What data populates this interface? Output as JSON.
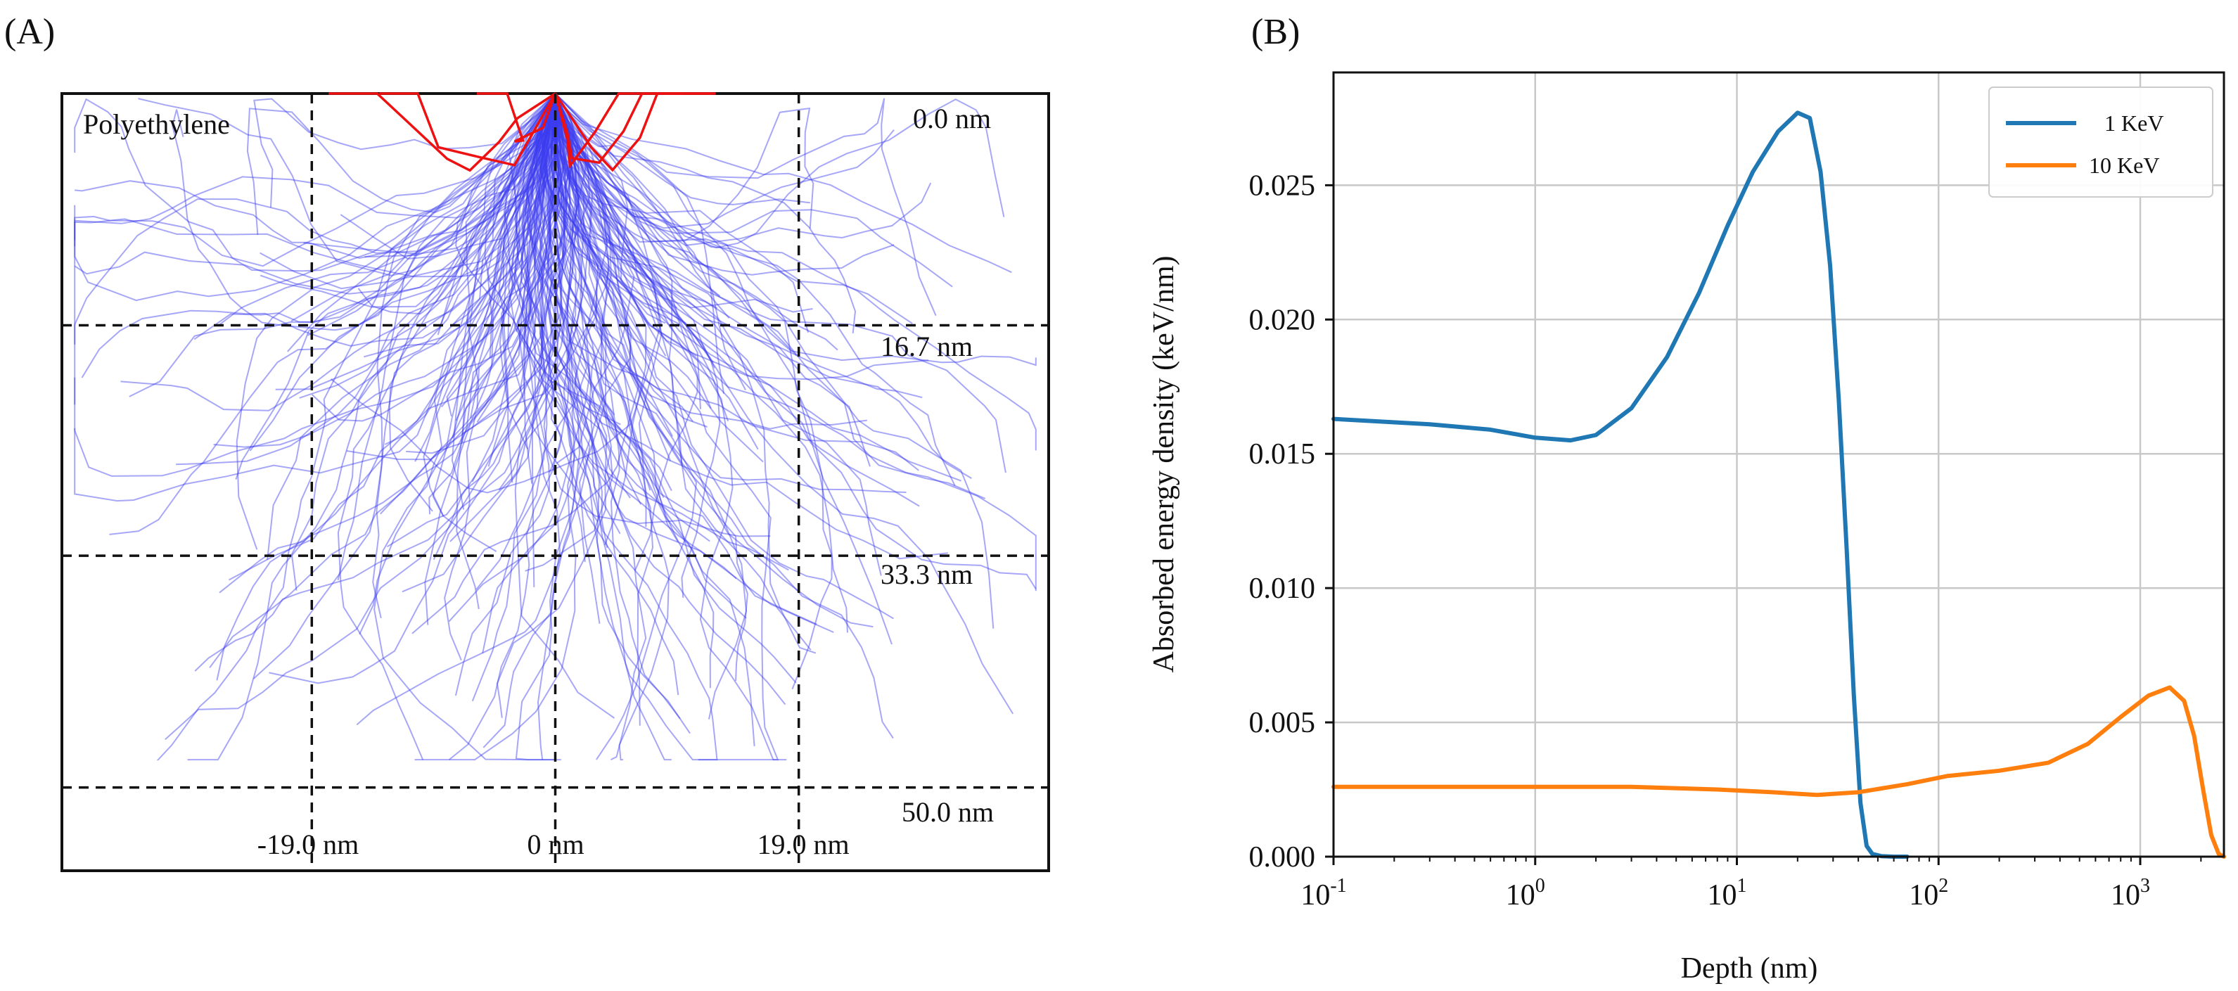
{
  "panels": {
    "a_label": "(A)",
    "b_label": "(B)"
  },
  "colors": {
    "electron_tracks": "#3b3bf0",
    "backscatter_tracks": "#ee1111",
    "series_1kev": "#1f77b4",
    "series_10kev": "#ff7f0e"
  },
  "chart_data": [
    {
      "type": "scatter",
      "subtype": "monte-carlo-electron-trajectories",
      "material_label": "Polyethylene",
      "x_ticks": [
        "-19.0 nm",
        "0 nm",
        "19.0 nm"
      ],
      "x_values": [
        -19.0,
        0,
        19.0
      ],
      "depth_ticks": [
        "0.0 nm",
        "16.7 nm",
        "33.3 nm",
        "50.0 nm"
      ],
      "depth_values": [
        0.0,
        16.7,
        33.3,
        50.0
      ],
      "xlim": [
        -38.5,
        38.5
      ],
      "ylim": [
        0,
        56
      ],
      "trajectory_count": 220,
      "backscattered_count": 6,
      "grid": "dashed",
      "source_point": [
        0,
        0
      ]
    },
    {
      "type": "line",
      "xscale": "log",
      "xlabel": "Depth (nm)",
      "ylabel": "Absorbed energy density (keV/nm)",
      "xlim": [
        0.1,
        2600
      ],
      "ylim": [
        0,
        0.0292
      ],
      "x_ticks": [
        {
          "base": "10",
          "exp": "-1",
          "value": 0.1
        },
        {
          "base": "10",
          "exp": "0",
          "value": 1
        },
        {
          "base": "10",
          "exp": "1",
          "value": 10
        },
        {
          "base": "10",
          "exp": "2",
          "value": 100
        },
        {
          "base": "10",
          "exp": "3",
          "value": 1000
        }
      ],
      "y_ticks": [
        "0.000",
        "0.005",
        "0.010",
        "0.015",
        "0.020",
        "0.025"
      ],
      "y_tick_values": [
        0,
        0.005,
        0.01,
        0.015,
        0.02,
        0.025
      ],
      "grid": true,
      "legend_position": "top-right",
      "series": [
        {
          "name": "1 KeV",
          "x": [
            0.1,
            0.3,
            0.6,
            1.0,
            1.5,
            2.0,
            3.0,
            4.5,
            6.5,
            9.0,
            12.0,
            16.0,
            20.0,
            23.0,
            26.0,
            29.0,
            32.0,
            35.0,
            38.0,
            41.0,
            44.0,
            47.0,
            52.0,
            60.0,
            70.0
          ],
          "y": [
            0.0163,
            0.0161,
            0.0159,
            0.0156,
            0.0155,
            0.0157,
            0.0167,
            0.0186,
            0.021,
            0.0235,
            0.0255,
            0.027,
            0.0277,
            0.0275,
            0.0255,
            0.022,
            0.017,
            0.0115,
            0.006,
            0.002,
            0.0004,
            0.0001,
            2e-05,
            0.0,
            0.0
          ]
        },
        {
          "name": "10 KeV",
          "x": [
            0.1,
            0.5,
            1.0,
            3.0,
            8.0,
            15.0,
            25.0,
            40.0,
            70.0,
            110.0,
            200.0,
            350.0,
            550.0,
            800.0,
            1100.0,
            1400.0,
            1650.0,
            1850.0,
            2050.0,
            2250.0,
            2450.0,
            2600.0
          ],
          "y": [
            0.0026,
            0.0026,
            0.0026,
            0.0026,
            0.0025,
            0.0024,
            0.0023,
            0.0024,
            0.0027,
            0.003,
            0.0032,
            0.0035,
            0.0042,
            0.0052,
            0.006,
            0.0063,
            0.0058,
            0.0045,
            0.0025,
            0.0008,
            0.0001,
            0.0
          ]
        }
      ]
    }
  ]
}
